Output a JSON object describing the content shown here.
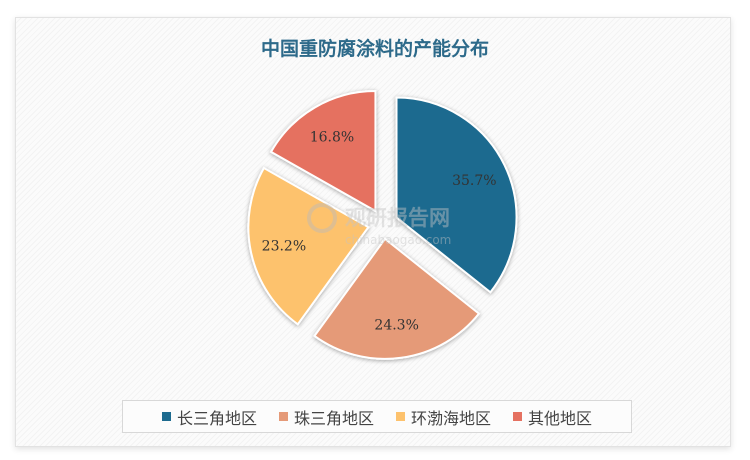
{
  "chart_data": {
    "type": "pie",
    "title": "中国重防腐涂料的产能分布",
    "categories": [
      "长三角地区",
      "珠三角地区",
      "环渤海地区",
      "其他地区"
    ],
    "values": [
      35.7,
      24.3,
      23.2,
      16.8
    ],
    "labels": [
      "35.7%",
      "24.3%",
      "23.2%",
      "16.8%"
    ],
    "colors": [
      "#1d6b8f",
      "#e59a78",
      "#fdc26d",
      "#e57161"
    ],
    "legend": "bottom",
    "exploded": true
  },
  "watermark": {
    "name": "观研报告网",
    "url": "chinabaogao.com"
  }
}
